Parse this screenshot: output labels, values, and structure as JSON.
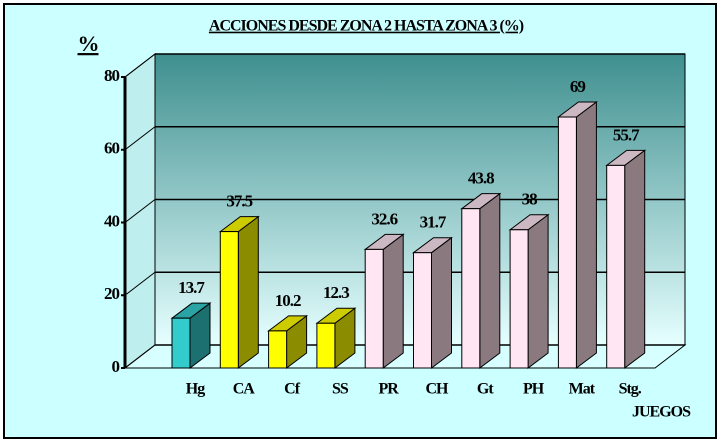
{
  "chart_data": {
    "type": "bar3d",
    "title": "ACCIONES DESDE ZONA 2 HASTA ZONA 3 (%)",
    "y_label": "%",
    "x_label": "JUEGOS",
    "categories": [
      "Hg",
      "CA",
      "Cf",
      "SS",
      "PR",
      "CH",
      "Gt",
      "PH",
      "Mat",
      "Stg."
    ],
    "values": [
      13.7,
      37.5,
      10.2,
      12.3,
      32.6,
      31.7,
      43.8,
      38,
      69,
      55.7
    ],
    "colors": [
      "#33cccc",
      "#ffff00",
      "#ffff00",
      "#ffff00",
      "#ffe6f2",
      "#ffe6f2",
      "#ffe6f2",
      "#ffe6f2",
      "#ffe6f2",
      "#ffe6f2"
    ],
    "ylim": [
      0,
      80
    ],
    "yticks": [
      0,
      20,
      40,
      60,
      80
    ],
    "grid": true
  }
}
